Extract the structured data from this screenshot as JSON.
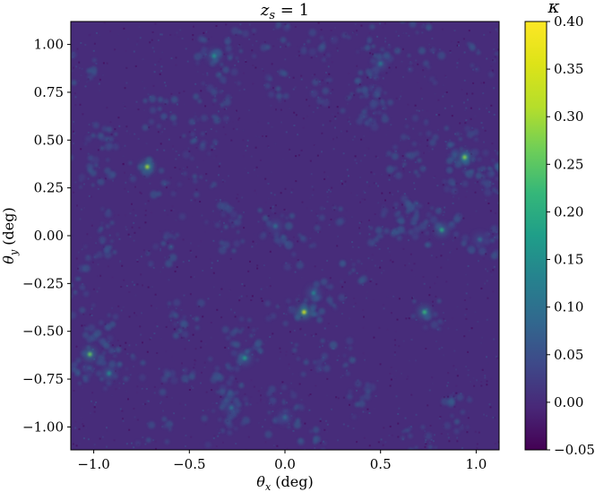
{
  "chart_data": {
    "type": "heatmap",
    "title": "z_s = 1",
    "xlabel": "θ_x (deg)",
    "ylabel": "θ_y (deg)",
    "xlim": [
      -1.12,
      1.12
    ],
    "ylim": [
      -1.12,
      1.12
    ],
    "xticks": [
      -1.0,
      -0.5,
      0.0,
      0.5,
      1.0
    ],
    "xtick_labels": [
      "−1.0",
      "−0.5",
      "0.0",
      "0.5",
      "1.0"
    ],
    "yticks": [
      1.0,
      0.75,
      0.5,
      0.25,
      0.0,
      -0.25,
      -0.5,
      -0.75,
      -1.0
    ],
    "ytick_labels": [
      "1.00",
      "0.75",
      "0.50",
      "0.25",
      "0.00",
      "−0.25",
      "−0.50",
      "−0.75",
      "−1.00"
    ],
    "colorbar": {
      "label": "κ",
      "colormap": "viridis",
      "range": [
        -0.05,
        0.4
      ],
      "ticks": [
        0.4,
        0.35,
        0.3,
        0.25,
        0.2,
        0.15,
        0.1,
        0.05,
        0.0,
        -0.05
      ],
      "tick_labels": [
        "0.40",
        "0.35",
        "0.30",
        "0.25",
        "0.20",
        "0.15",
        "0.10",
        "0.05",
        "0.00",
        "−0.05"
      ]
    },
    "background_value": 0.0,
    "peaks": [
      {
        "x": 0.1,
        "y": -0.4,
        "value": 0.35
      },
      {
        "x": -0.72,
        "y": 0.36,
        "value": 0.3
      },
      {
        "x": 0.94,
        "y": 0.41,
        "value": 0.28
      },
      {
        "x": -1.02,
        "y": -0.62,
        "value": 0.26
      },
      {
        "x": 0.73,
        "y": -0.4,
        "value": 0.22
      },
      {
        "x": 0.82,
        "y": 0.03,
        "value": 0.2
      },
      {
        "x": -0.21,
        "y": -0.64,
        "value": 0.18
      },
      {
        "x": -0.37,
        "y": 0.94,
        "value": 0.16
      },
      {
        "x": -0.92,
        "y": -0.72,
        "value": 0.15
      },
      {
        "x": 0.5,
        "y": 0.9,
        "value": 0.12
      },
      {
        "x": 0.15,
        "y": -0.3,
        "value": 0.14
      },
      {
        "x": -0.05,
        "y": 0.05,
        "value": 0.1
      },
      {
        "x": -0.28,
        "y": -0.9,
        "value": 0.11
      },
      {
        "x": 1.02,
        "y": -0.02,
        "value": 0.1
      },
      {
        "x": 0.0,
        "y": -0.95,
        "value": 0.09
      }
    ]
  }
}
